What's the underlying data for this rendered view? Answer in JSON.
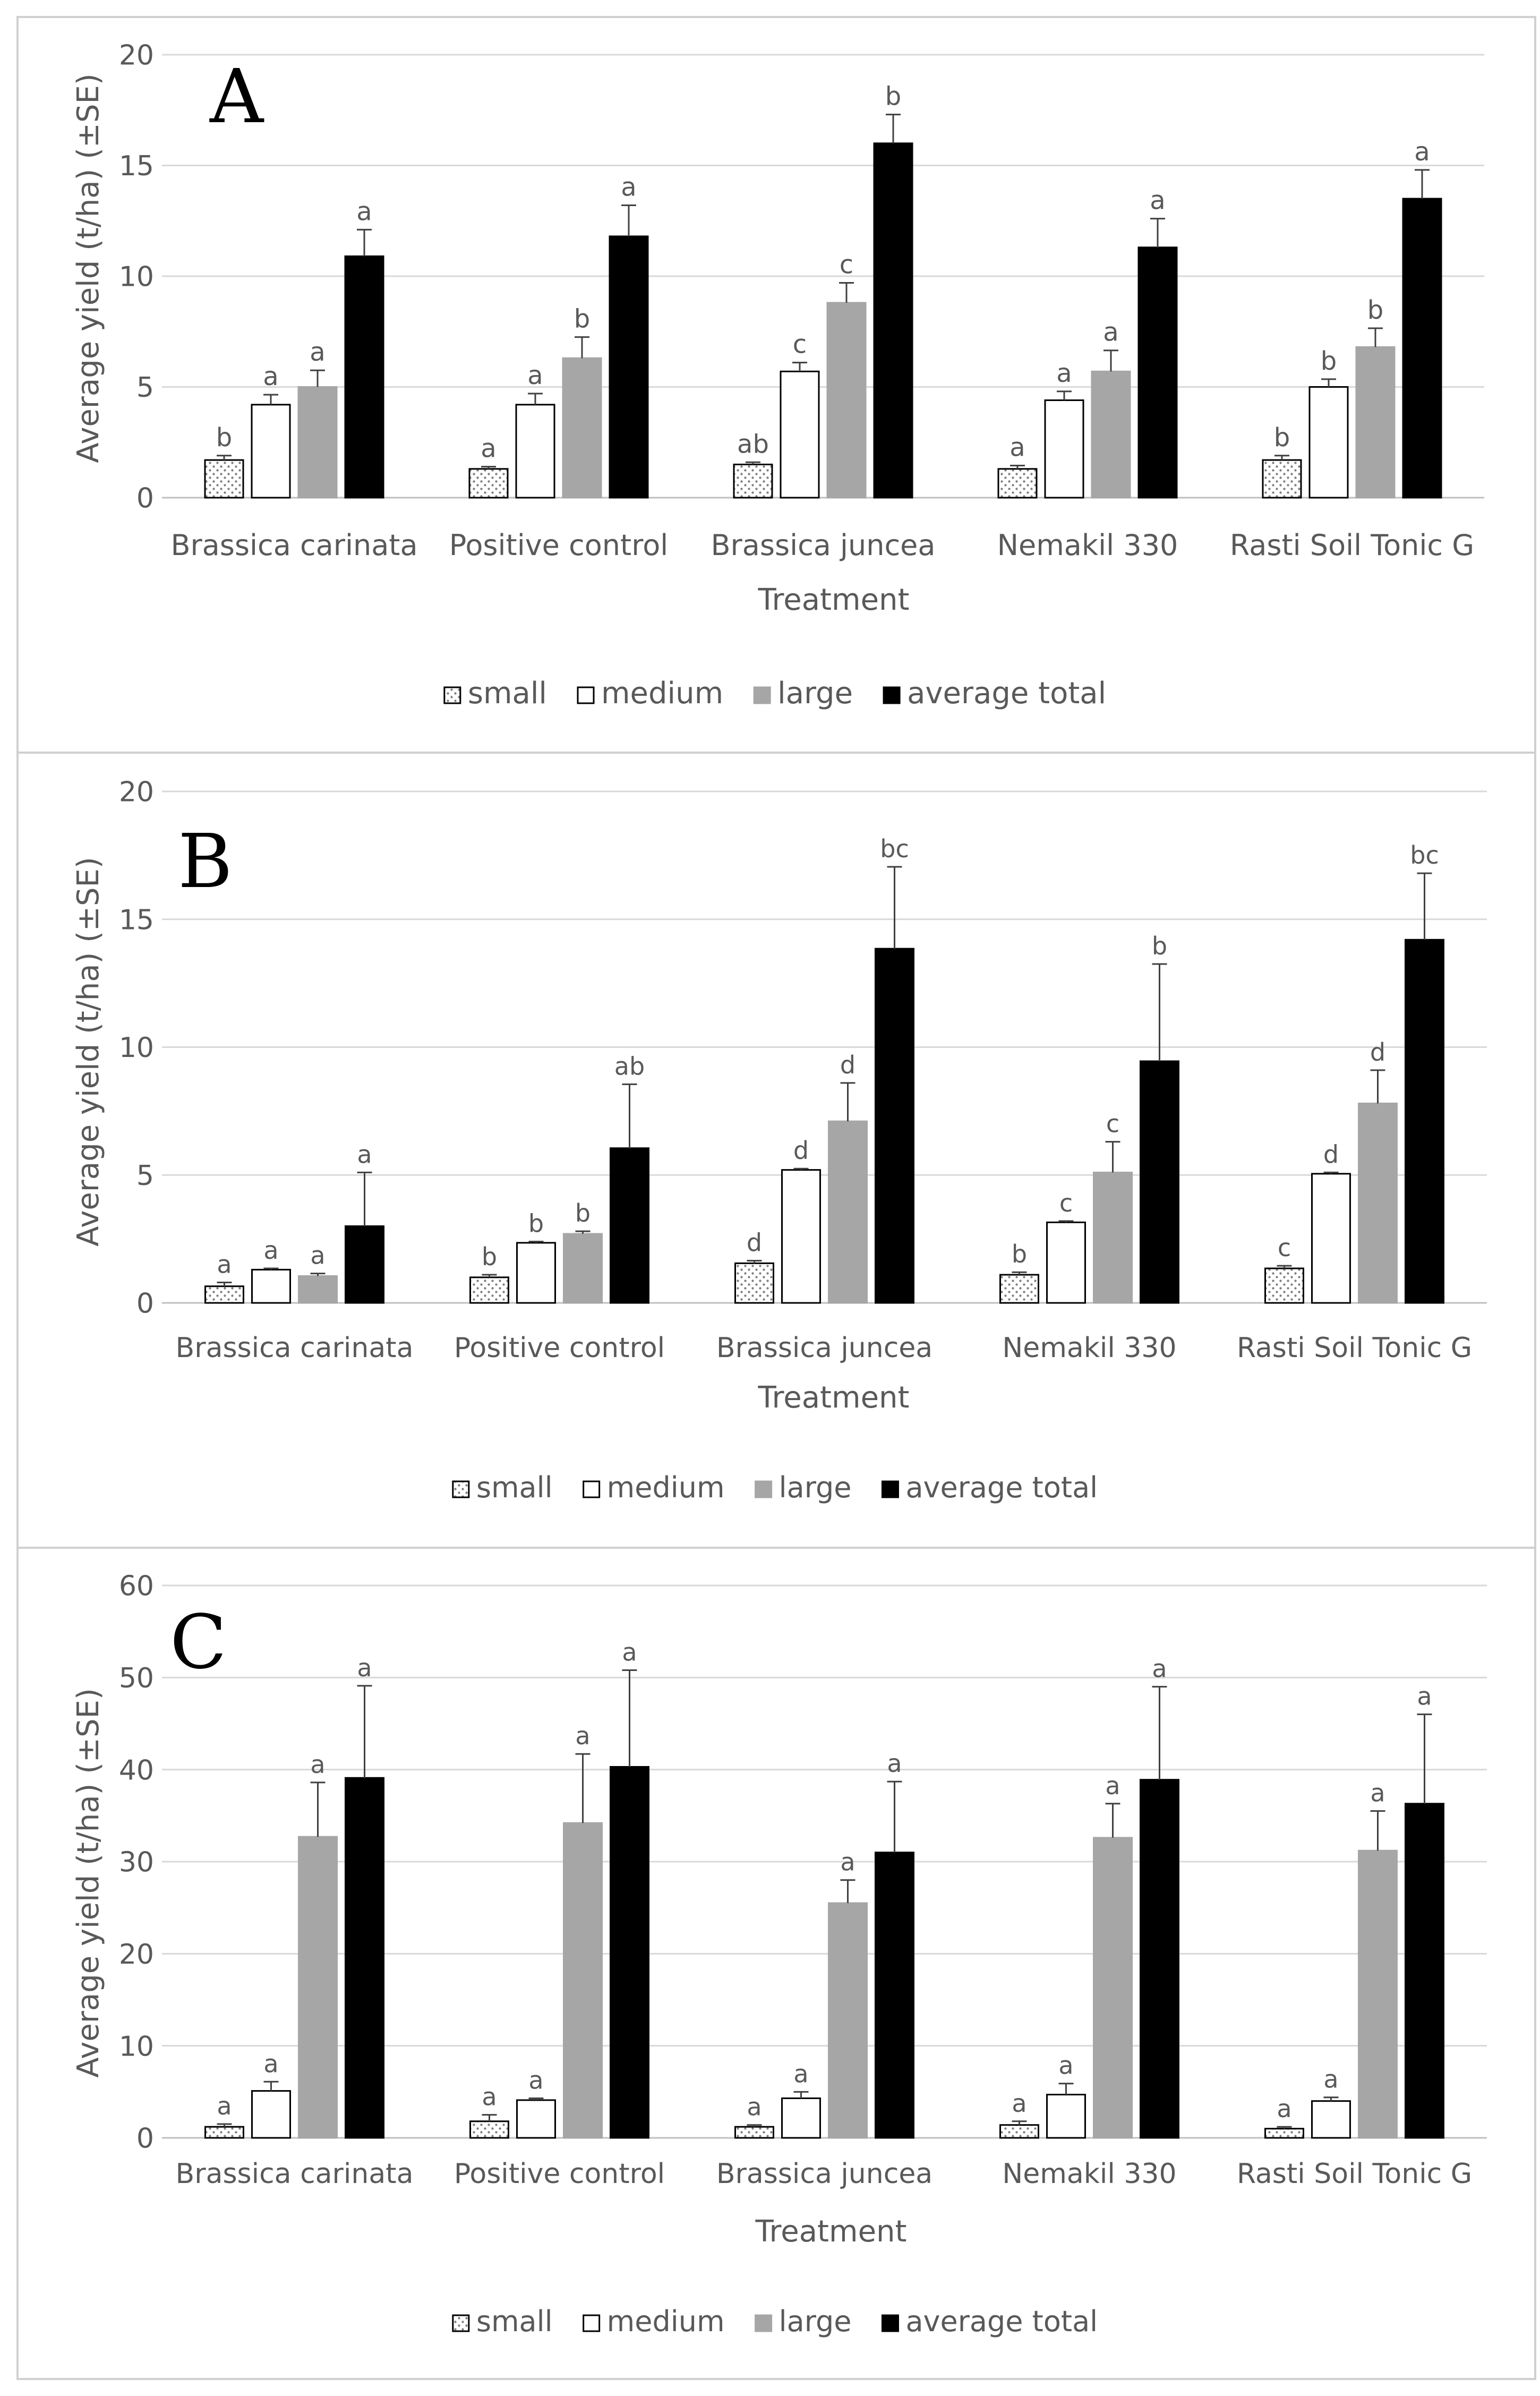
{
  "colors": {
    "small": "#f2f2f2",
    "medium": "#ffffff",
    "large": "#a6a6a6",
    "average_total": "#000000",
    "bar_outline": "#000000"
  },
  "chart_data": [
    {
      "type": "bar",
      "panel": "A",
      "ylabel": "Average yield (t/ha) (±SE)",
      "xlabel": "Treatment",
      "ylim": [
        0,
        20
      ],
      "yticks": [
        0,
        5,
        10,
        15,
        20
      ],
      "categories": [
        "Brassica carinata",
        "Positive control",
        "Brassica juncea",
        "Nemakil 330",
        "Rasti Soil Tonic G"
      ],
      "legend": [
        "small",
        "medium",
        "large",
        "average total"
      ],
      "legend_position": "bottom",
      "series": [
        {
          "name": "small",
          "values": [
            1.7,
            1.3,
            1.5,
            1.3,
            1.7
          ],
          "errors": [
            0.2,
            0.1,
            0.1,
            0.15,
            0.2
          ],
          "letters": [
            "b",
            "a",
            "ab",
            "a",
            "b"
          ]
        },
        {
          "name": "medium",
          "values": [
            4.2,
            4.2,
            5.7,
            4.4,
            5.0
          ],
          "errors": [
            0.45,
            0.5,
            0.4,
            0.4,
            0.35
          ],
          "letters": [
            "a",
            "a",
            "c",
            "a",
            "b"
          ]
        },
        {
          "name": "large",
          "values": [
            5.0,
            6.3,
            8.8,
            5.7,
            6.8
          ],
          "errors": [
            0.75,
            0.95,
            0.9,
            0.95,
            0.85
          ],
          "letters": [
            "a",
            "b",
            "c",
            "a",
            "b"
          ]
        },
        {
          "name": "average total",
          "values": [
            10.9,
            11.8,
            16.0,
            11.3,
            13.5
          ],
          "errors": [
            1.2,
            1.4,
            1.3,
            1.3,
            1.3
          ],
          "letters": [
            "a",
            "a",
            "b",
            "a",
            "a"
          ]
        }
      ]
    },
    {
      "type": "bar",
      "panel": "B",
      "ylabel": "Average yield (t/ha) (±SE)",
      "xlabel": "Treatment",
      "ylim": [
        0,
        20
      ],
      "yticks": [
        0,
        5,
        10,
        15,
        20
      ],
      "categories": [
        "Brassica carinata",
        "Positive control",
        "Brassica juncea",
        "Nemakil 330",
        "Rasti Soil Tonic G"
      ],
      "legend": [
        "small",
        "medium",
        "large",
        "average total"
      ],
      "legend_position": "bottom",
      "series": [
        {
          "name": "small",
          "values": [
            0.65,
            1.0,
            1.55,
            1.1,
            1.35
          ],
          "errors": [
            0.15,
            0.1,
            0.1,
            0.1,
            0.1
          ],
          "letters": [
            "a",
            "b",
            "d",
            "b",
            "c"
          ]
        },
        {
          "name": "medium",
          "values": [
            1.3,
            2.35,
            5.2,
            3.15,
            5.05
          ],
          "errors": [
            0.05,
            0.05,
            0.05,
            0.05,
            0.05
          ],
          "letters": [
            "a",
            "b",
            "d",
            "c",
            "d"
          ]
        },
        {
          "name": "large",
          "values": [
            1.05,
            2.7,
            7.1,
            5.1,
            7.8
          ],
          "errors": [
            0.1,
            0.1,
            1.5,
            1.2,
            1.3
          ],
          "letters": [
            "a",
            "b",
            "d",
            "c",
            "d"
          ]
        },
        {
          "name": "average total",
          "values": [
            3.0,
            6.05,
            13.85,
            9.45,
            14.2
          ],
          "errors": [
            2.1,
            2.5,
            3.2,
            3.8,
            2.6
          ],
          "letters": [
            "a",
            "ab",
            "bc",
            "b",
            "bc"
          ]
        }
      ]
    },
    {
      "type": "bar",
      "panel": "C",
      "ylabel": "Average yield (t/ha) (±SE)",
      "xlabel": "Treatment",
      "ylim": [
        0,
        60
      ],
      "yticks": [
        0,
        10,
        20,
        30,
        40,
        50,
        60
      ],
      "categories": [
        "Brassica carinata",
        "Positive control",
        "Brassica juncea",
        "Nemakil 330",
        "Rasti Soil Tonic G"
      ],
      "legend": [
        "small",
        "medium",
        "large",
        "average total"
      ],
      "legend_position": "bottom",
      "series": [
        {
          "name": "small",
          "values": [
            1.2,
            1.8,
            1.2,
            1.4,
            1.0
          ],
          "errors": [
            0.3,
            0.7,
            0.2,
            0.4,
            0.2
          ],
          "letters": [
            "a",
            "a",
            "a",
            "a",
            "a"
          ]
        },
        {
          "name": "medium",
          "values": [
            5.1,
            4.1,
            4.3,
            4.7,
            4.0
          ],
          "errors": [
            1.0,
            0.2,
            0.7,
            1.2,
            0.4
          ],
          "letters": [
            "a",
            "a",
            "a",
            "a",
            "a"
          ]
        },
        {
          "name": "large",
          "values": [
            32.7,
            34.2,
            25.5,
            32.6,
            31.2
          ],
          "errors": [
            5.9,
            7.5,
            2.5,
            3.7,
            4.3
          ],
          "letters": [
            "a",
            "a",
            "a",
            "a",
            "a"
          ]
        },
        {
          "name": "average total",
          "values": [
            39.1,
            40.3,
            31.0,
            38.9,
            36.3
          ],
          "errors": [
            10.0,
            10.5,
            7.7,
            10.1,
            9.7
          ],
          "letters": [
            "a",
            "a",
            "a",
            "a",
            "a"
          ]
        }
      ]
    }
  ]
}
